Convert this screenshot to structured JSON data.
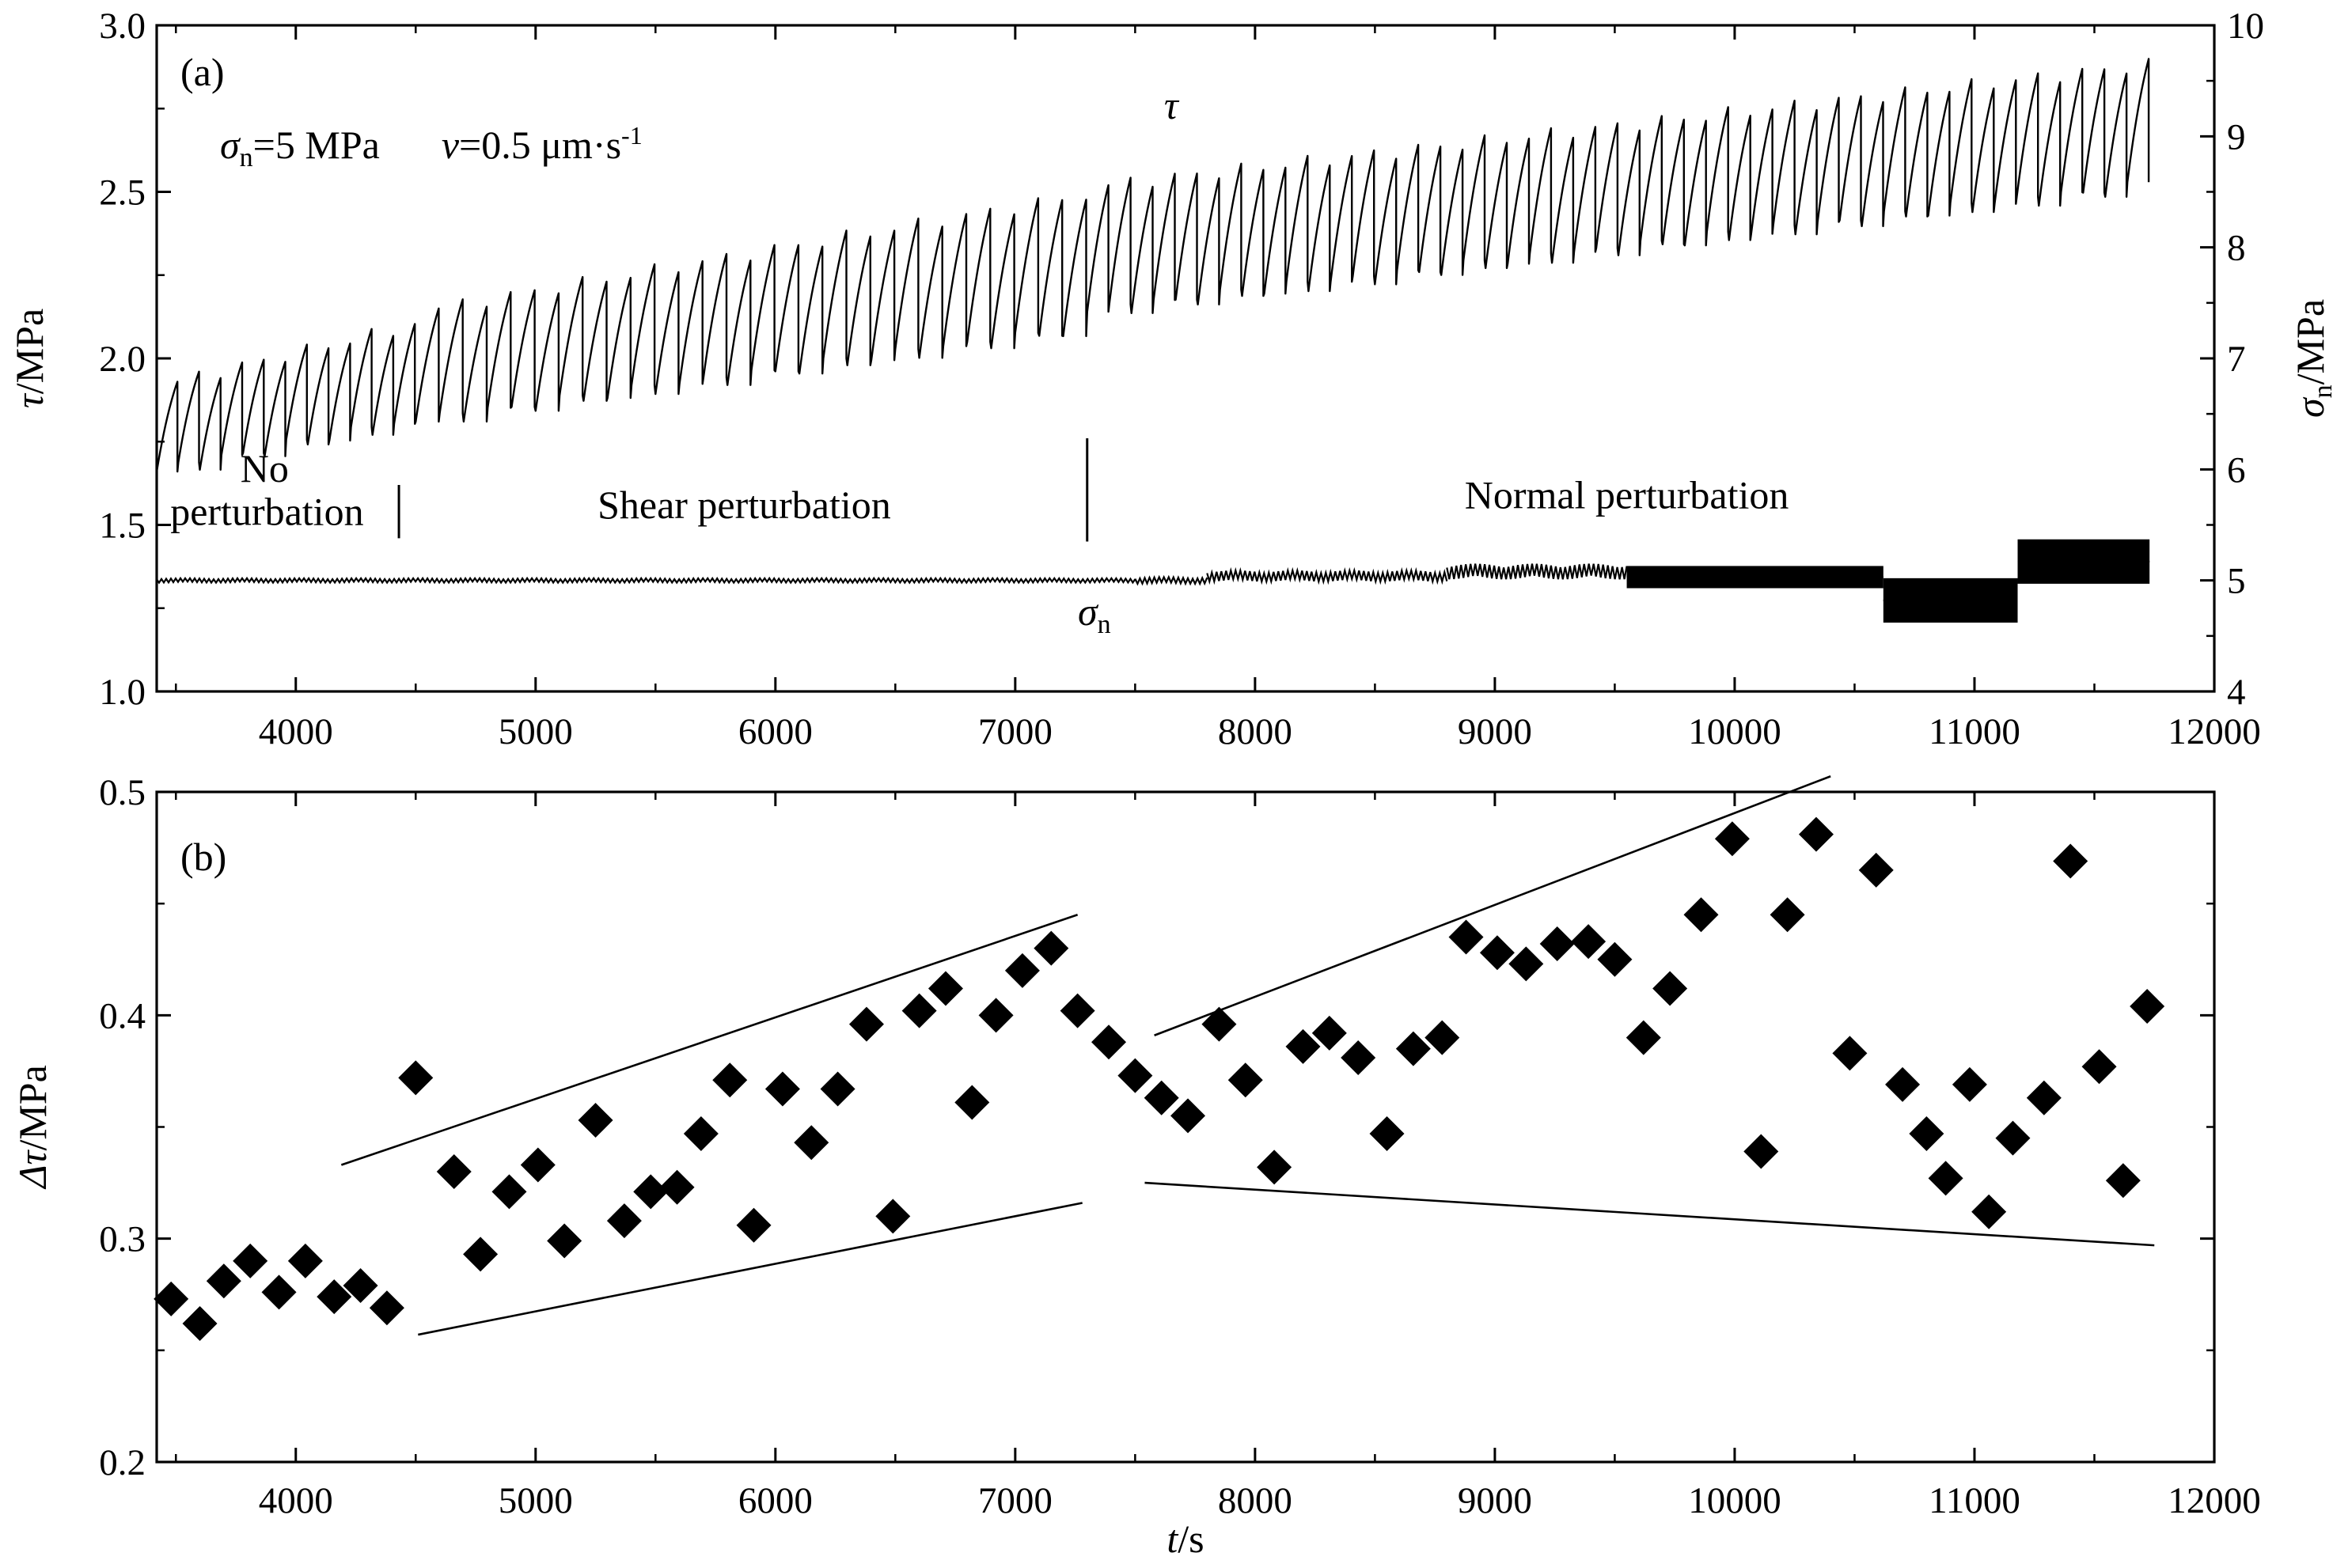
{
  "chart_data": [
    {
      "id": "a",
      "type": "line",
      "panel_label": "(a)",
      "annotation_main": "σn=5 MPa   v=0.5 μm·s-1",
      "annotations": {
        "sigma_symbol": "σ",
        "sigma_sub": "n",
        "sigma_value": "=5 MPa",
        "v_symbol": "v",
        "v_value": "=0.5 μm·s",
        "v_exponent": "-1"
      },
      "xlabel": "t/s",
      "xlim": [
        3420,
        12000
      ],
      "x_ticks": [
        4000,
        5000,
        6000,
        7000,
        8000,
        9000,
        10000,
        11000,
        12000
      ],
      "y_left": {
        "symbol": "τ",
        "unit": "/MPa",
        "lim": [
          1.0,
          3.0
        ],
        "ticks": [
          "1.0",
          "1.5",
          "2.0",
          "2.5",
          "3.0"
        ]
      },
      "y_right": {
        "symbol": "σ",
        "sub": "n",
        "unit": "/MPa",
        "lim": [
          4,
          10
        ],
        "ticks": [
          "4",
          "5",
          "6",
          "7",
          "8",
          "9",
          "10"
        ]
      },
      "series": [
        {
          "name": "τ",
          "axis": "left",
          "segments": [
            {
              "t_start": 3420,
              "t_end": 4500,
              "n_cycles": 12,
              "peak_start": 1.93,
              "peak_end": 2.1,
              "drop_start": 0.27,
              "drop_end": 0.3
            },
            {
              "t_start": 4500,
              "t_end": 7300,
              "n_cycles": 28,
              "peak_start": 2.15,
              "peak_end": 2.49,
              "drop_start": 0.34,
              "drop_end": 0.41
            },
            {
              "t_start": 7300,
              "t_end": 11730,
              "n_cycles": 48,
              "peak_start": 2.52,
              "peak_end": 2.88,
              "drop_start": 0.38,
              "drop_end": 0.37
            }
          ],
          "label": "τ",
          "label_at": [
            7650,
            2.72
          ]
        },
        {
          "name": "σn",
          "axis": "right",
          "level_segments": [
            {
              "t_start": 3420,
              "t_end": 7500,
              "mean": 5.0,
              "amp": 0.02
            },
            {
              "t_start": 7500,
              "t_end": 7800,
              "mean": 5.0,
              "amp": 0.03
            },
            {
              "t_start": 7800,
              "t_end": 8800,
              "mean": 5.04,
              "amp": 0.05
            },
            {
              "t_start": 8800,
              "t_end": 9550,
              "mean": 5.08,
              "amp": 0.07
            },
            {
              "t_start": 9550,
              "t_end": 10620,
              "mean": 5.03,
              "amp": 0.1
            },
            {
              "t_start": 10620,
              "t_end": 11180,
              "mean": 4.82,
              "amp": 0.2
            },
            {
              "t_start": 11180,
              "t_end": 11730,
              "mean": 5.17,
              "amp": 0.2
            }
          ],
          "label_symbol": "σ",
          "label_sub": "n",
          "label_at": [
            7330,
            4.6
          ]
        }
      ],
      "regions": [
        {
          "label_line1": "No",
          "label_line2": "perturbation",
          "t_start": 3420,
          "t_end": 4430
        },
        {
          "label": "Shear perturbation",
          "t_start": 4430,
          "t_end": 7300
        },
        {
          "label": "Normal perturbation",
          "t_start": 7300,
          "t_end": 11730
        }
      ],
      "dividers": [
        4430,
        7300
      ]
    },
    {
      "id": "b",
      "type": "scatter",
      "panel_label": "(b)",
      "xlabel_symbol": "t",
      "xlabel_unit": "/s",
      "ylabel_symbol": "Δτ",
      "ylabel_unit": "/MPa",
      "xlim": [
        3420,
        12000
      ],
      "ylim": [
        0.2,
        0.5
      ],
      "x_ticks": [
        4000,
        5000,
        6000,
        7000,
        8000,
        9000,
        10000,
        11000,
        12000
      ],
      "y_ticks": [
        "0.2",
        "0.3",
        "0.4",
        "0.5"
      ],
      "marker": "diamond",
      "points": [
        [
          3480,
          0.273
        ],
        [
          3600,
          0.262
        ],
        [
          3700,
          0.281
        ],
        [
          3810,
          0.29
        ],
        [
          3930,
          0.276
        ],
        [
          4040,
          0.29
        ],
        [
          4160,
          0.274
        ],
        [
          4270,
          0.279
        ],
        [
          4380,
          0.269
        ],
        [
          4500,
          0.372
        ],
        [
          4660,
          0.33
        ],
        [
          4770,
          0.293
        ],
        [
          4890,
          0.321
        ],
        [
          5010,
          0.333
        ],
        [
          5120,
          0.299
        ],
        [
          5250,
          0.353
        ],
        [
          5370,
          0.308
        ],
        [
          5480,
          0.321
        ],
        [
          5590,
          0.323
        ],
        [
          5690,
          0.347
        ],
        [
          5810,
          0.371
        ],
        [
          5910,
          0.306
        ],
        [
          6030,
          0.367
        ],
        [
          6150,
          0.343
        ],
        [
          6260,
          0.367
        ],
        [
          6380,
          0.396
        ],
        [
          6490,
          0.31
        ],
        [
          6600,
          0.402
        ],
        [
          6710,
          0.412
        ],
        [
          6820,
          0.361
        ],
        [
          6920,
          0.4
        ],
        [
          7030,
          0.42
        ],
        [
          7150,
          0.43
        ],
        [
          7260,
          0.402
        ],
        [
          7390,
          0.388
        ],
        [
          7500,
          0.373
        ],
        [
          7610,
          0.363
        ],
        [
          7720,
          0.355
        ],
        [
          7850,
          0.396
        ],
        [
          7960,
          0.371
        ],
        [
          8080,
          0.332
        ],
        [
          8200,
          0.386
        ],
        [
          8310,
          0.392
        ],
        [
          8430,
          0.381
        ],
        [
          8550,
          0.347
        ],
        [
          8660,
          0.385
        ],
        [
          8780,
          0.39
        ],
        [
          8880,
          0.435
        ],
        [
          9010,
          0.428
        ],
        [
          9130,
          0.423
        ],
        [
          9260,
          0.432
        ],
        [
          9390,
          0.433
        ],
        [
          9500,
          0.425
        ],
        [
          9620,
          0.39
        ],
        [
          9730,
          0.412
        ],
        [
          9860,
          0.445
        ],
        [
          9990,
          0.479
        ],
        [
          10110,
          0.339
        ],
        [
          10220,
          0.445
        ],
        [
          10340,
          0.481
        ],
        [
          10480,
          0.383
        ],
        [
          10590,
          0.465
        ],
        [
          10700,
          0.369
        ],
        [
          10800,
          0.347
        ],
        [
          10880,
          0.327
        ],
        [
          10980,
          0.369
        ],
        [
          11060,
          0.312
        ],
        [
          11160,
          0.345
        ],
        [
          11290,
          0.363
        ],
        [
          11400,
          0.469
        ],
        [
          11520,
          0.377
        ],
        [
          11620,
          0.326
        ],
        [
          11720,
          0.404
        ]
      ],
      "trend_lines": [
        {
          "from": [
            4190,
            0.333
          ],
          "to": [
            7260,
            0.445
          ]
        },
        {
          "from": [
            4510,
            0.257
          ],
          "to": [
            7280,
            0.316
          ]
        },
        {
          "from": [
            7580,
            0.391
          ],
          "to": [
            10400,
            0.507
          ]
        },
        {
          "from": [
            7540,
            0.325
          ],
          "to": [
            11750,
            0.297
          ]
        }
      ]
    }
  ]
}
